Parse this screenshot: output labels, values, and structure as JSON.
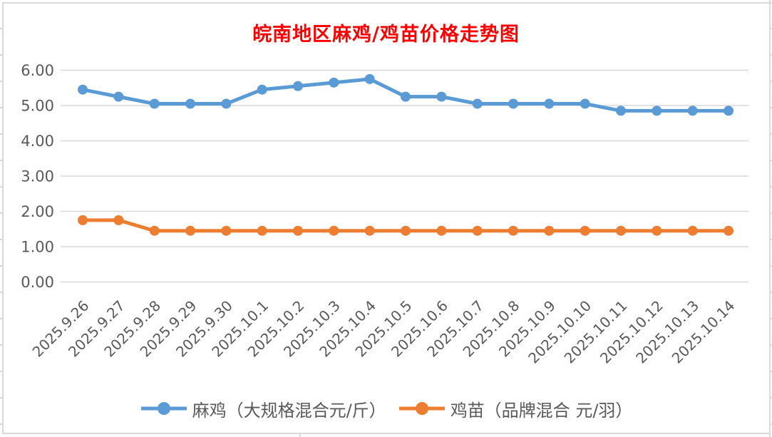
{
  "window": {
    "background": "#ffffff",
    "frame_line_color": "#d9d9d9"
  },
  "chart_data": {
    "type": "line",
    "title": "皖南地区麻鸡/鸡苗价格走势图",
    "title_color": "#ff0000",
    "xlabel": "",
    "ylabel": "",
    "ylim": [
      0,
      6
    ],
    "y_tick_labels": [
      "6.00",
      "5.00",
      "4.00",
      "3.00",
      "2.00",
      "1.00",
      "0.00"
    ],
    "grid": true,
    "gridline_color": "#d9d9d9",
    "axis_text_color": "#595959",
    "legend_position": "bottom",
    "categories": [
      "2025.9.26",
      "2025.9.27",
      "2025.9.28",
      "2025.9.29",
      "2025.9.30",
      "2025.10.1",
      "2025.10.2",
      "2025.10.3",
      "2025.10.4",
      "2025.10.5",
      "2025.10.6",
      "2025.10.7",
      "2025.10.8",
      "2025.10.9",
      "2025.10.10",
      "2025.10.11",
      "2025.10.12",
      "2025.10.13",
      "2025.10.14"
    ],
    "series": [
      {
        "name": "麻鸡（大规格混合元/斤）",
        "color": "#5b9bd5",
        "values": [
          5.45,
          5.25,
          5.05,
          5.05,
          5.05,
          5.45,
          5.55,
          5.65,
          5.75,
          5.25,
          5.25,
          5.05,
          5.05,
          5.05,
          5.05,
          4.85,
          4.85,
          4.85,
          4.85
        ]
      },
      {
        "name": "鸡苗（品牌混合 元/羽）",
        "color": "#ed7d31",
        "values": [
          1.75,
          1.75,
          1.45,
          1.45,
          1.45,
          1.45,
          1.45,
          1.45,
          1.45,
          1.45,
          1.45,
          1.45,
          1.45,
          1.45,
          1.45,
          1.45,
          1.45,
          1.45,
          1.45
        ]
      }
    ]
  }
}
